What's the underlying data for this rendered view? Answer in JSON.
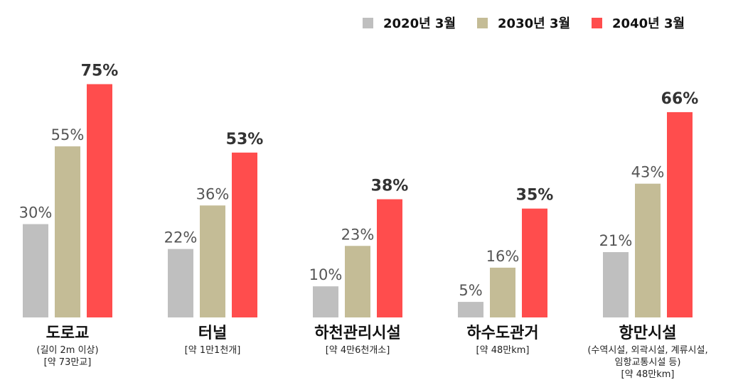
{
  "chart_data": {
    "type": "bar",
    "title": "",
    "xlabel": "",
    "ylabel": "",
    "ylim": [
      0,
      100
    ],
    "grid": false,
    "legend_position": "top-right",
    "categories": [
      "도로교",
      "터널",
      "하천관리시설",
      "하수도관거",
      "항만시설"
    ],
    "category_notes": [
      [
        "(길이 2m 이상)",
        "[약 73만교]"
      ],
      [
        "[약 1만1천개]"
      ],
      [
        "[약 4만6천개소]"
      ],
      [
        "[약 48만km]"
      ],
      [
        "(수역시설, 외곽시설, 계류시설,",
        "임항교통시설 등)",
        "[약 48만km]"
      ]
    ],
    "series": [
      {
        "name": "2020년 3월",
        "color": "#bfbfbf",
        "values": [
          30,
          22,
          10,
          5,
          21
        ],
        "labels": [
          "30%",
          "22%",
          "10%",
          "5%",
          "21%"
        ]
      },
      {
        "name": "2030년 3월",
        "color": "#c4bc96",
        "values": [
          55,
          36,
          23,
          16,
          43
        ],
        "labels": [
          "55%",
          "36%",
          "23%",
          "16%",
          "43%"
        ]
      },
      {
        "name": "2040년 3월",
        "color": "#ff4d4d",
        "values": [
          75,
          53,
          38,
          35,
          66
        ],
        "labels": [
          "75%",
          "53%",
          "38%",
          "35%",
          "66%"
        ]
      }
    ]
  }
}
